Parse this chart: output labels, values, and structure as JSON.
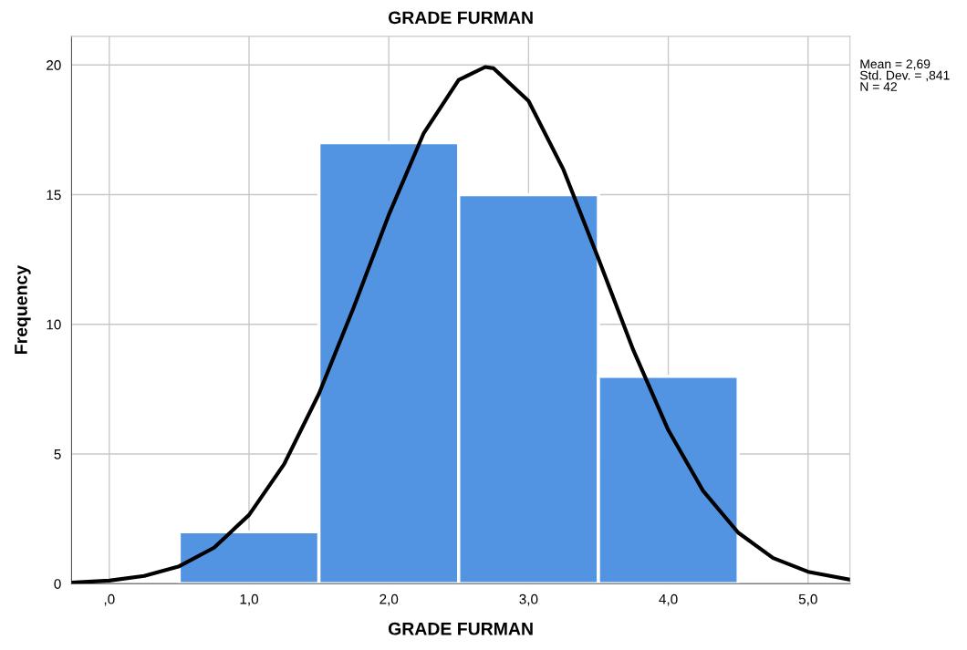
{
  "chart_data": {
    "type": "histogram",
    "title": "GRADE FURMAN",
    "xlabel": "GRADE FURMAN",
    "ylabel": "Frequency",
    "series": [
      {
        "color": "#5294e2",
        "bins": [
          0.5,
          1.5,
          2.5,
          3.5,
          4.5
        ],
        "values": [
          2,
          17,
          15,
          8
        ]
      },
      {
        "type": "line",
        "color": "#000000",
        "x": [
          -0.27,
          0,
          0.25,
          0.5,
          0.75,
          1.0,
          1.25,
          1.5,
          1.75,
          2.0,
          2.25,
          2.5,
          2.69,
          2.75,
          3.0,
          3.25,
          3.5,
          3.75,
          4.0,
          4.25,
          4.5,
          4.75,
          5.0,
          5.3
        ],
        "values": [
          0.04,
          0.12,
          0.3,
          0.67,
          1.39,
          2.65,
          4.6,
          7.32,
          10.67,
          14.22,
          17.37,
          19.42,
          19.92,
          19.87,
          18.61,
          15.96,
          12.53,
          9.0,
          5.92,
          3.57,
          1.97,
          0.99,
          0.46,
          0.16
        ]
      }
    ],
    "xlim": [
      -0.27,
      5.3
    ],
    "xticks": [
      {
        "value": 0,
        "label": ",0"
      },
      {
        "value": 1,
        "label": "1,0"
      },
      {
        "value": 2,
        "label": "2,0"
      },
      {
        "value": 3,
        "label": "3,0"
      },
      {
        "value": 4,
        "label": "4,0"
      },
      {
        "value": 5,
        "label": "5,0"
      }
    ],
    "ylim": [
      0,
      21.1
    ],
    "yticks": [
      0,
      5,
      10,
      15,
      20
    ],
    "grid": true,
    "annotations": [
      "Mean = 2,69",
      "Std. Dev. = ,841",
      "N = 42"
    ]
  }
}
